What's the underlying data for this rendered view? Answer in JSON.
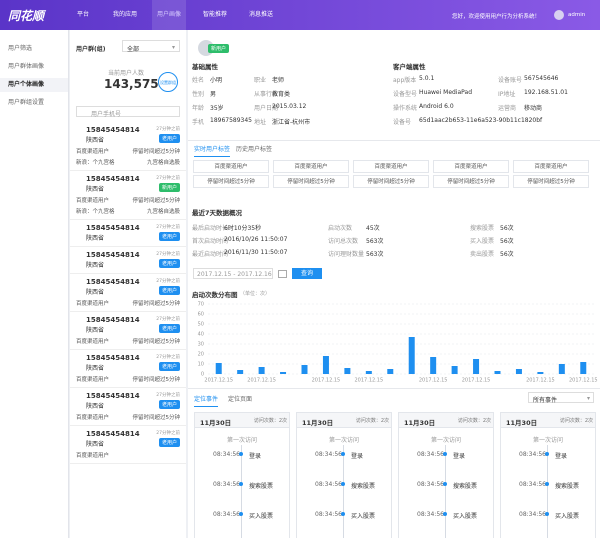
{
  "nav": {
    "logo": "同花顺",
    "items": [
      "平台",
      "我的应用",
      "用户画像",
      "智能推荐",
      "消息推送"
    ],
    "active": 2,
    "welcome": "您好，欢迎使用用户行为分析系统！",
    "user": "admin"
  },
  "sidebar": {
    "items": [
      "用户筛选",
      "用户群体画像",
      "用户个体画像",
      "用户群组设置"
    ],
    "active": 2
  },
  "user_panel": {
    "group_label": "用户群(组)",
    "group_value": "全部",
    "count_label": "当前用户人数",
    "count": "143,575",
    "set_button": "设置群组",
    "search_placeholder": "用户手机号",
    "users": [
      {
        "phone": "15845454814",
        "province": "陕西省",
        "time": "27分钟之前",
        "tag": "老用户",
        "details": [
          [
            "百度渠道用户",
            "停留时间超过5分钟"
          ],
          [
            "新浪：个九宫格",
            "九宫格自选股"
          ]
        ]
      },
      {
        "phone": "15845454814",
        "province": "陕西省",
        "time": "27分钟之前",
        "tag": "新用户",
        "details": [
          [
            "百度渠道用户",
            "停留时间超过5分钟"
          ],
          [
            "新浪：个九宫格",
            "九宫格自选股"
          ]
        ]
      },
      {
        "phone": "15845454814",
        "province": "陕西省",
        "time": "27分钟之前",
        "tag": "老用户",
        "details": []
      },
      {
        "phone": "15845454814",
        "province": "陕西省",
        "time": "27分钟之前",
        "tag": "老用户",
        "details": []
      },
      {
        "phone": "15845454814",
        "province": "陕西省",
        "time": "27分钟之前",
        "tag": "老用户",
        "details": [
          [
            "百度渠道用户",
            "停留时间超过5分钟"
          ]
        ]
      },
      {
        "phone": "15845454814",
        "province": "陕西省",
        "time": "27分钟之前",
        "tag": "老用户",
        "details": [
          [
            "百度渠道用户",
            "停留时间超过5分钟"
          ]
        ]
      },
      {
        "phone": "15845454814",
        "province": "陕西省",
        "time": "27分钟之前",
        "tag": "老用户",
        "details": [
          [
            "百度渠道用户",
            "停留时间超过5分钟"
          ]
        ]
      },
      {
        "phone": "15845454814",
        "province": "陕西省",
        "time": "27分钟之前",
        "tag": "老用户",
        "details": [
          [
            "百度渠道用户",
            "停留时间超过5分钟"
          ]
        ]
      },
      {
        "phone": "15845454814",
        "province": "陕西省",
        "time": "27分钟之前",
        "tag": "老用户",
        "details": [
          [
            "百度渠道用户"
          ]
        ]
      }
    ]
  },
  "profile": {
    "tag": "新用户",
    "basic": {
      "title": "基础属性",
      "fields": [
        {
          "label": "姓名",
          "value": "小明"
        },
        {
          "label": "职业",
          "value": "老师"
        },
        {
          "label": "性别",
          "value": "男"
        },
        {
          "label": "从事行业",
          "value": "教育类"
        },
        {
          "label": "年龄",
          "value": "35岁"
        },
        {
          "label": "用户日期",
          "value": "2015.03.12"
        },
        {
          "label": "手机",
          "value": "18967589345"
        },
        {
          "label": "地址",
          "value": "浙江省-杭州市"
        }
      ]
    },
    "client": {
      "title": "客户端属性",
      "fields": [
        {
          "label": "app版本",
          "value": "5.0.1"
        },
        {
          "label": "设备账号",
          "value": "567545646"
        },
        {
          "label": "设备型号",
          "value": "Huawei MediaPad"
        },
        {
          "label": "IP地址",
          "value": "192.168.51.01"
        },
        {
          "label": "操作系统",
          "value": "Android 6.0"
        },
        {
          "label": "运营商",
          "value": "移动商"
        },
        {
          "label": "设备号",
          "value": "65d1aac2b653-11e6a523-90b11c1820bf"
        }
      ]
    }
  },
  "tag_tabs": [
    "实时用户标签",
    "历史用户标签"
  ],
  "tag_grid": [
    [
      "百度渠道用户",
      "百度渠道用户",
      "百度渠道用户",
      "百度渠道用户",
      "百度渠道用户"
    ],
    [
      "停留时间超过5分钟",
      "停留时间超过5分钟",
      "停留时间超过5分钟",
      "停留时间超过5分钟",
      "停留时间超过5分钟"
    ]
  ],
  "summary": {
    "title": "最近7天数据概况",
    "fields": [
      {
        "label": "最后启动时长",
        "value": "6时10分35秒"
      },
      {
        "label": "启动次数",
        "value": "45次"
      },
      {
        "label": "搜索股票",
        "value": "56次"
      },
      {
        "label": "首次启动时间",
        "value": "2016/10/26  11:50:07"
      },
      {
        "label": "访问总次数",
        "value": "563次"
      },
      {
        "label": "买入股票",
        "value": "56次"
      },
      {
        "label": "最近启动时间",
        "value": "2016/11/30  11:50:07"
      },
      {
        "label": "访问理财数量",
        "value": "563次"
      },
      {
        "label": "卖出股票",
        "value": "56次"
      }
    ]
  },
  "query": {
    "date_range": "2017.12.15 - 2017.12.16",
    "button": "查询"
  },
  "chart_data": {
    "type": "bar",
    "title": "启动次数分布图",
    "subtitle": "（单位：次）",
    "categories": [
      "2017.12.15",
      null,
      "2017.12.15",
      null,
      null,
      "2017.12.15",
      null,
      "2017.12.15",
      null,
      null,
      "2017.12.15",
      null,
      "2017.12.15",
      null,
      null,
      "2017.12.15",
      null,
      "2017.12.15"
    ],
    "values": [
      11,
      4,
      7,
      2,
      9,
      18,
      6,
      3,
      5,
      37,
      17,
      8,
      15,
      3,
      5,
      2,
      10,
      12
    ],
    "color": "#1e8ff0",
    "ylim": [
      0,
      70
    ],
    "yticks": [
      0,
      10,
      20,
      30,
      40,
      50,
      60,
      70
    ],
    "grid": true
  },
  "events": {
    "tabs": [
      "定位事件",
      "定位页面"
    ],
    "filter": "所有事件",
    "columns": [
      {
        "date": "11月30日",
        "visits": "访问次数：2次",
        "first": "第一次访问",
        "items": [
          {
            "time": "08:34:56",
            "event": "登录"
          },
          {
            "time": "08:34:56",
            "event": "搜索股票"
          },
          {
            "time": "08:34:56",
            "event": "买入股票"
          }
        ]
      },
      {
        "date": "11月30日",
        "visits": "访问次数：2次",
        "first": "第一次访问",
        "items": [
          {
            "time": "08:34:56",
            "event": "登录"
          },
          {
            "time": "08:34:56",
            "event": "搜索股票"
          },
          {
            "time": "08:34:56",
            "event": "买入股票"
          }
        ]
      },
      {
        "date": "11月30日",
        "visits": "访问次数：2次",
        "first": "第一次访问",
        "items": [
          {
            "time": "08:34:56",
            "event": "登录"
          },
          {
            "time": "08:34:56",
            "event": "搜索股票"
          },
          {
            "time": "08:34:56",
            "event": "买入股票"
          }
        ]
      },
      {
        "date": "11月30日",
        "visits": "访问次数：2次",
        "first": "第一次访问",
        "items": [
          {
            "time": "08:34:56",
            "event": "登录"
          },
          {
            "time": "08:34:56",
            "event": "搜索股票"
          },
          {
            "time": "08:34:56",
            "event": "买入股票"
          }
        ]
      }
    ]
  }
}
